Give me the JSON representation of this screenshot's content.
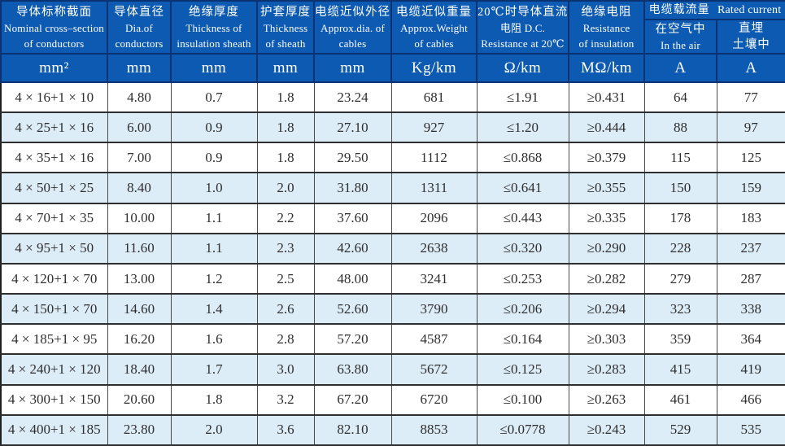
{
  "table": {
    "header": {
      "c1": {
        "zh": "导体标称截面",
        "en1": "Nominal cross–section",
        "en2": "of conductors",
        "unit": "mm²"
      },
      "c2": {
        "zh": "导体直径",
        "en1": "Dia.of",
        "en2": "conductors",
        "unit": "mm"
      },
      "c3": {
        "zh": "绝缘厚度",
        "en1": "Thickness of",
        "en2": "insulation sheath",
        "unit": "mm"
      },
      "c4": {
        "zh": "护套厚度",
        "en1": "Thickness",
        "en2": "of sheath",
        "unit": "mm"
      },
      "c5": {
        "zh": "电缆近似外径",
        "en1": "Approx.dia. of",
        "en2": "cables",
        "unit": "mm"
      },
      "c6": {
        "zh": "电缆近似重量",
        "en1": "Approx.Weight",
        "en2": "of cables",
        "unit": "Kg/km"
      },
      "c7": {
        "zh": "20℃时导体直流",
        "en1": "电阻 D.C.",
        "en2": "Resistance at 20℃",
        "unit": "Ω/km"
      },
      "c8": {
        "zh": "绝缘电阻",
        "en1": "Resistance",
        "en2": "of insulation",
        "unit": "MΩ/km"
      },
      "group": {
        "zh": "电缆载流量",
        "en": "Rated current"
      },
      "c9": {
        "zh": "在空气中",
        "en1": "In the air",
        "unit": "A"
      },
      "c10": {
        "zh": "直埋",
        "en1": "土壤中",
        "unit": "A"
      }
    },
    "rows": [
      [
        "4 × 16+1 × 10",
        "4.80",
        "0.7",
        "1.8",
        "23.24",
        "681",
        "≤1.91",
        "≥0.431",
        "64",
        "77"
      ],
      [
        "4 × 25+1 × 16",
        "6.00",
        "0.9",
        "1.8",
        "27.10",
        "927",
        "≤1.20",
        "≥0.444",
        "88",
        "97"
      ],
      [
        "4 × 35+1 × 16",
        "7.00",
        "0.9",
        "1.8",
        "29.50",
        "1112",
        "≤0.868",
        "≥0.379",
        "115",
        "125"
      ],
      [
        "4 × 50+1 × 25",
        "8.40",
        "1.0",
        "2.0",
        "31.80",
        "1311",
        "≤0.641",
        "≥0.355",
        "150",
        "159"
      ],
      [
        "4 × 70+1 × 35",
        "10.00",
        "1.1",
        "2.2",
        "37.60",
        "2096",
        "≤0.443",
        "≥0.335",
        "178",
        "183"
      ],
      [
        "4 × 95+1 × 50",
        "11.60",
        "1.1",
        "2.3",
        "42.60",
        "2638",
        "≤0.320",
        "≥0.290",
        "228",
        "237"
      ],
      [
        "4 × 120+1 × 70",
        "13.00",
        "1.2",
        "2.5",
        "48.00",
        "3241",
        "≤0.253",
        "≥0.282",
        "279",
        "287"
      ],
      [
        "4 × 150+1 × 70",
        "14.60",
        "1.4",
        "2.6",
        "52.60",
        "3790",
        "≤0.206",
        "≥0.294",
        "323",
        "338"
      ],
      [
        "4 × 185+1 × 95",
        "16.20",
        "1.6",
        "2.8",
        "57.20",
        "4587",
        "≤0.164",
        "≥0.303",
        "359",
        "364"
      ],
      [
        "4 × 240+1 × 120",
        "18.40",
        "1.7",
        "3.0",
        "63.80",
        "5672",
        "≤0.125",
        "≥0.283",
        "415",
        "419"
      ],
      [
        "4 × 300+1 × 150",
        "20.60",
        "1.8",
        "3.2",
        "67.20",
        "6720",
        "≤0.100",
        "≥0.263",
        "461",
        "466"
      ],
      [
        "4 × 400+1 × 185",
        "23.80",
        "2.0",
        "3.6",
        "82.10",
        "8853",
        "≤0.0778",
        "≥0.243",
        "529",
        "535"
      ]
    ],
    "colors": {
      "header_bg": "#0d5ab2",
      "header_border": "#0a3170",
      "alt_row_bg": "#ddedf8",
      "data_text": "#2e2e2e"
    }
  }
}
